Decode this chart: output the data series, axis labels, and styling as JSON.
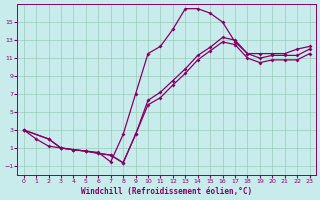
{
  "xlabel": "Windchill (Refroidissement éolien,°C)",
  "bg_color": "#c8ecec",
  "line_color": "#880066",
  "grid_color": "#99ccbb",
  "xlim": [
    -0.5,
    23.5
  ],
  "ylim": [
    -2.0,
    17.0
  ],
  "xticks": [
    0,
    1,
    2,
    3,
    4,
    5,
    6,
    7,
    8,
    9,
    10,
    11,
    12,
    13,
    14,
    15,
    16,
    17,
    18,
    19,
    20,
    21,
    22,
    23
  ],
  "yticks": [
    -1,
    1,
    3,
    5,
    7,
    9,
    11,
    13,
    15
  ],
  "main_x": [
    0,
    1,
    2,
    3,
    4,
    5,
    6,
    7,
    8,
    9,
    10,
    11,
    12,
    13,
    14,
    15,
    16,
    17,
    18,
    19,
    20,
    21,
    22,
    23
  ],
  "main_y": [
    3.0,
    2.0,
    1.2,
    1.0,
    0.8,
    0.65,
    0.5,
    -0.55,
    2.5,
    7.0,
    11.5,
    12.3,
    14.2,
    16.5,
    16.5,
    16.0,
    15.0,
    12.8,
    11.5,
    11.5,
    11.5,
    11.5,
    12.0,
    12.3
  ],
  "low1_x": [
    0,
    2,
    3,
    4,
    5,
    6,
    7,
    8,
    9,
    10,
    11,
    12,
    13,
    14,
    15,
    16,
    17,
    18,
    19,
    20,
    21,
    22,
    23
  ],
  "low1_y": [
    3.0,
    2.0,
    1.0,
    0.8,
    0.65,
    0.4,
    0.2,
    -0.65,
    2.5,
    6.3,
    7.2,
    8.5,
    9.8,
    11.3,
    12.2,
    13.3,
    13.0,
    11.5,
    11.0,
    11.3,
    11.3,
    11.3,
    12.0
  ],
  "low2_x": [
    0,
    2,
    3,
    4,
    5,
    6,
    7,
    8,
    9,
    10,
    11,
    12,
    13,
    14,
    15,
    16,
    17,
    18,
    19,
    20,
    21,
    22,
    23
  ],
  "low2_y": [
    3.0,
    2.0,
    1.0,
    0.8,
    0.65,
    0.4,
    0.2,
    -0.65,
    2.5,
    5.8,
    6.6,
    8.0,
    9.3,
    10.8,
    11.8,
    12.8,
    12.5,
    11.0,
    10.5,
    10.8,
    10.8,
    10.8,
    11.5
  ]
}
